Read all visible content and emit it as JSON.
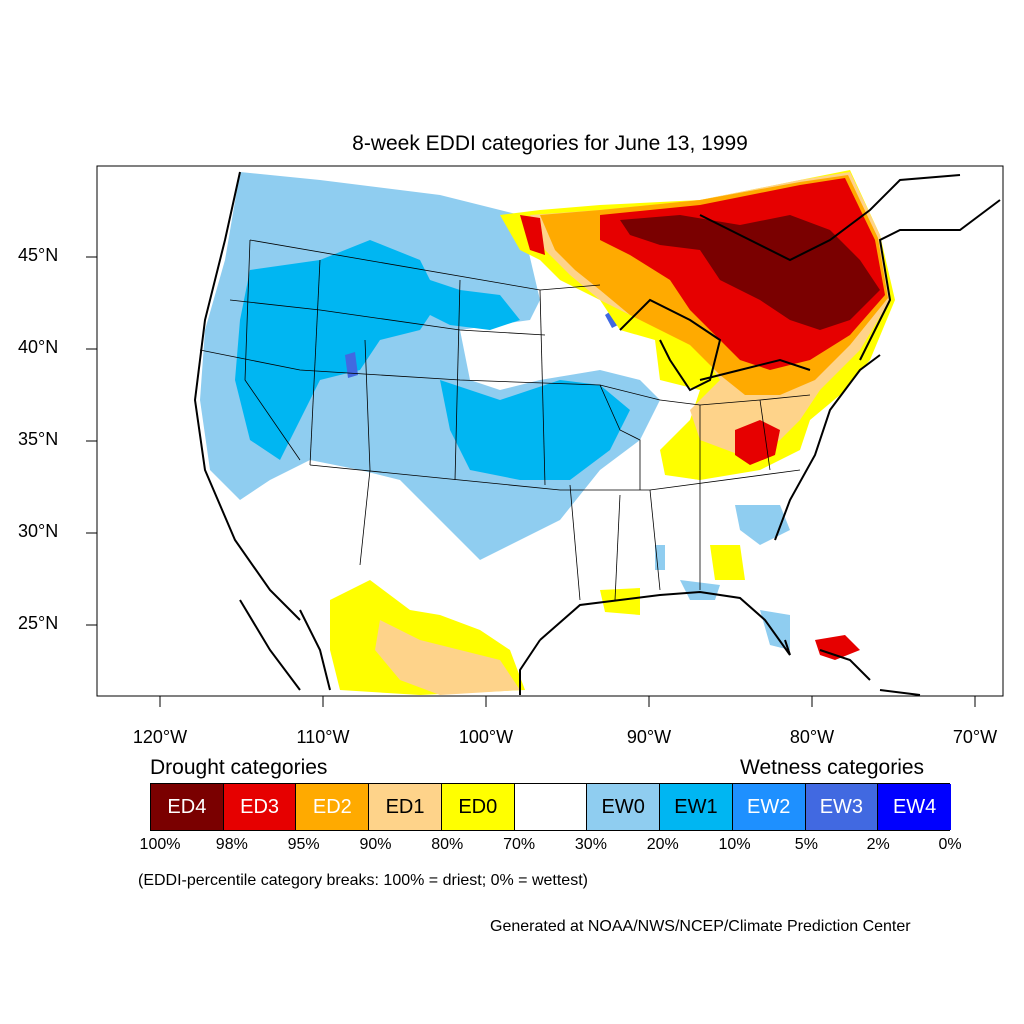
{
  "title": "8-week EDDI categories for June 13, 1999",
  "y_ticks": [
    "45°N",
    "40°N",
    "35°N",
    "30°N",
    "25°N"
  ],
  "x_ticks": [
    "120°W",
    "110°W",
    "100°W",
    "90°W",
    "80°W",
    "70°W"
  ],
  "legend": {
    "drought_heading": "Drought categories",
    "wetness_heading": "Wetness categories",
    "categories": [
      {
        "label": "ED4",
        "color": "#7a0000"
      },
      {
        "label": "ED3",
        "color": "#e60000"
      },
      {
        "label": "ED2",
        "color": "#ffaa00"
      },
      {
        "label": "ED1",
        "color": "#fed38a"
      },
      {
        "label": "ED0",
        "color": "#ffff00"
      },
      {
        "label": "",
        "color": "#ffffff"
      },
      {
        "label": "EW0",
        "color": "#8fcdf0"
      },
      {
        "label": "EW1",
        "color": "#00b6f2"
      },
      {
        "label": "EW2",
        "color": "#1e90ff"
      },
      {
        "label": "EW3",
        "color": "#4169e1"
      },
      {
        "label": "EW4",
        "color": "#0000ff"
      }
    ],
    "breaks": [
      "100%",
      "98%",
      "95%",
      "90%",
      "80%",
      "70%",
      "30%",
      "20%",
      "10%",
      "5%",
      "2%",
      "0%"
    ],
    "note": "(EDDI-percentile category breaks: 100% = driest; 0% = wettest)"
  },
  "credit": "Generated at NOAA/NWS/NCEP/Climate Prediction Center"
}
